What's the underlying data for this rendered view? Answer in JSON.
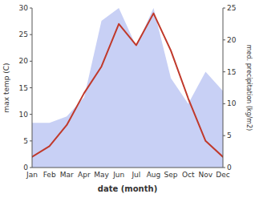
{
  "chart_data": {
    "type": "line",
    "xlabel": "date (month)",
    "ylabel": "max temp (C)",
    "y2label": "med. precipitation (kg/m2)",
    "categories": [
      "Jan",
      "Feb",
      "Mar",
      "Apr",
      "May",
      "Jun",
      "Jul",
      "Aug",
      "Sep",
      "Oct",
      "Nov",
      "Dec"
    ],
    "series": [
      {
        "type": "area",
        "axis": "y2",
        "color": "#c8d0f5",
        "values": [
          7,
          7,
          8,
          11,
          23,
          25,
          19,
          25,
          14,
          10,
          15,
          12
        ]
      },
      {
        "type": "line",
        "color": "#c0392b",
        "values": [
          2,
          4,
          8,
          14,
          19,
          27,
          23,
          29,
          22,
          13,
          5,
          2
        ]
      }
    ],
    "ylim": [
      0,
      30
    ],
    "yticks": [
      0,
      5,
      10,
      15,
      20,
      25,
      30
    ],
    "y2lim": [
      0,
      25
    ],
    "y2ticks": [
      0,
      5,
      10,
      15,
      20,
      25
    ],
    "grid": false
  }
}
